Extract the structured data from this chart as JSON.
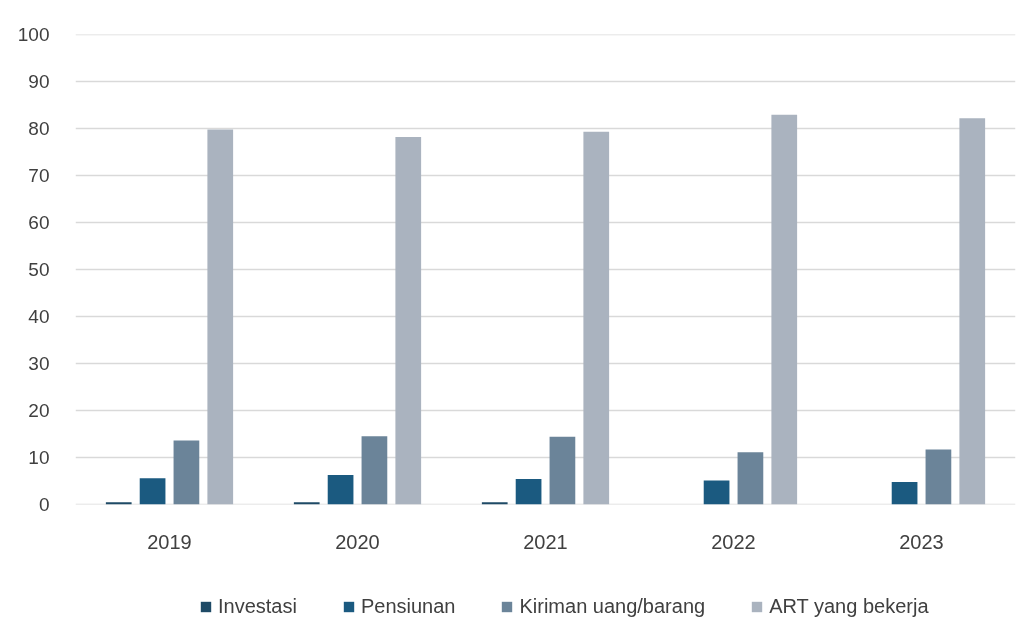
{
  "chart_data": {
    "type": "bar",
    "categories": [
      "2019",
      "2020",
      "2021",
      "2022",
      "2023"
    ],
    "series": [
      {
        "name": "Investasi",
        "color": "#1e4a66",
        "values": [
          0.5,
          0.5,
          0.5,
          0,
          0
        ]
      },
      {
        "name": "Pensiunan",
        "color": "#1b5a80",
        "values": [
          5.6,
          6.3,
          5.4,
          5.1,
          4.8
        ]
      },
      {
        "name": "Kiriman uang/barang",
        "color": "#6b8499",
        "values": [
          13.6,
          14.5,
          14.4,
          11.1,
          11.7
        ]
      },
      {
        "name": "ART yang bekerja",
        "color": "#aab3bf",
        "values": [
          79.8,
          78.2,
          79.3,
          82.9,
          82.2
        ]
      }
    ],
    "ylim": [
      0,
      100
    ],
    "yticks": [
      0,
      10,
      20,
      30,
      40,
      50,
      60,
      70,
      80,
      90,
      100
    ],
    "grid": "y",
    "legend": "bottom"
  }
}
